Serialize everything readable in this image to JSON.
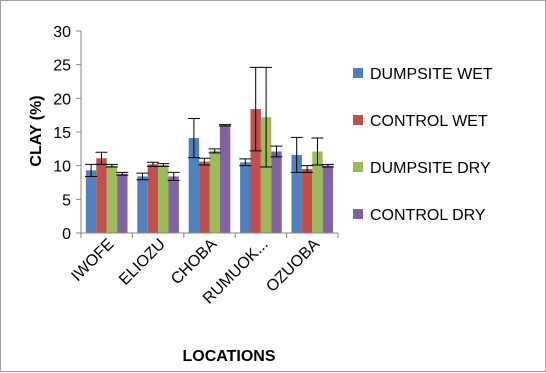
{
  "chart_data": {
    "type": "bar",
    "title": "",
    "xlabel": "LOCATIONS",
    "ylabel": "CLAY (%)",
    "categories": [
      "IWOFE",
      "ELIOZU",
      "CHOBA",
      "RUMUOK...",
      "OZUOBA"
    ],
    "ylim": [
      0,
      30
    ],
    "yticks": [
      0,
      5,
      10,
      15,
      20,
      25,
      30
    ],
    "grid": false,
    "legend_position": "right",
    "series": [
      {
        "name": "DUMPSITE WET",
        "color": "#4f81bd",
        "values": [
          9.3,
          8.4,
          14.1,
          10.5,
          11.6
        ],
        "errors": [
          0.9,
          0.5,
          2.9,
          0.5,
          2.6
        ]
      },
      {
        "name": "CONTROL WET",
        "color": "#c0504d",
        "values": [
          11.1,
          10.2,
          10.6,
          18.4,
          9.5
        ],
        "errors": [
          0.9,
          0.3,
          0.5,
          6.2,
          0.5
        ]
      },
      {
        "name": "DUMPSITE DRY",
        "color": "#9bbb59",
        "values": [
          10.0,
          10.1,
          12.2,
          17.2,
          12.1
        ],
        "errors": [
          0.2,
          0.2,
          0.3,
          7.4,
          2.0
        ]
      },
      {
        "name": "CONTROL DRY",
        "color": "#8064a2",
        "values": [
          8.8,
          8.4,
          16.0,
          12.1,
          10.0
        ],
        "errors": [
          0.2,
          0.6,
          0.1,
          0.8,
          0.2
        ]
      }
    ]
  }
}
